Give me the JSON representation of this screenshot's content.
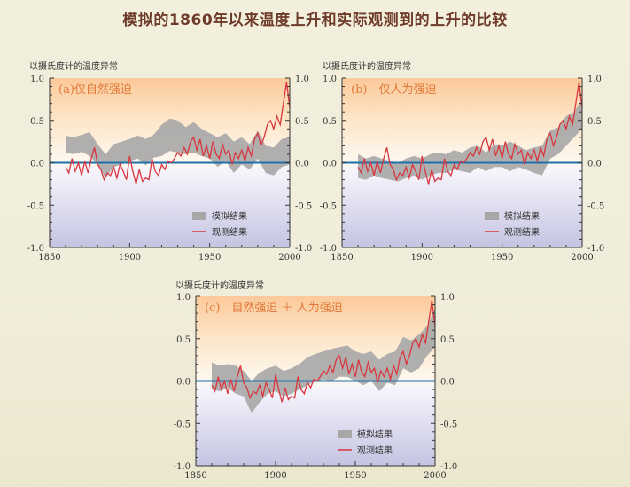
{
  "title": "模拟的1860年以来温度上升和实际观测到的上升的比较",
  "colors": {
    "observed": "#d9363e",
    "model": "#a7a7a7",
    "zero_line": "#1f6fa8",
    "title": "#6e3b2a",
    "label": "#e07a3a"
  },
  "chart_data": [
    {
      "type": "area",
      "panel_label": "(a)仅自然强迫",
      "ylabel": "以摄氏度计的温度异常",
      "xlim": [
        1850,
        2000
      ],
      "ylim": [
        -1.0,
        1.0
      ],
      "x_ticks": [
        "1850",
        "1900",
        "1950",
        "2000"
      ],
      "y_ticks": [
        "1.0",
        "0.5",
        "0.0",
        "-0.5",
        "-1.0"
      ],
      "legend": [
        {
          "name": "模拟结果",
          "kind": "band"
        },
        {
          "name": "观测结果",
          "kind": "line"
        }
      ],
      "legend_position": "bottom-right",
      "series": [
        {
          "name": "模拟结果",
          "kind": "band",
          "x": [
            1860,
            1865,
            1870,
            1875,
            1880,
            1885,
            1890,
            1895,
            1900,
            1905,
            1910,
            1915,
            1920,
            1925,
            1930,
            1935,
            1940,
            1945,
            1950,
            1955,
            1960,
            1965,
            1970,
            1975,
            1980,
            1985,
            1990,
            1995,
            2000
          ],
          "low": [
            0.12,
            0.1,
            0.13,
            0.08,
            -0.02,
            -0.18,
            -0.05,
            -0.02,
            0.02,
            0.05,
            -0.03,
            0.06,
            0.08,
            0.14,
            0.12,
            0.1,
            0.12,
            0.08,
            0.05,
            -0.05,
            0.02,
            -0.12,
            -0.02,
            -0.08,
            0.05,
            -0.12,
            -0.15,
            -0.05,
            -0.02
          ],
          "high": [
            0.32,
            0.3,
            0.33,
            0.36,
            0.22,
            0.1,
            0.22,
            0.25,
            0.28,
            0.32,
            0.28,
            0.33,
            0.45,
            0.52,
            0.5,
            0.42,
            0.48,
            0.4,
            0.35,
            0.3,
            0.35,
            0.25,
            0.3,
            0.22,
            0.38,
            0.2,
            0.18,
            0.28,
            0.3
          ]
        },
        {
          "name": "观测结果",
          "kind": "line",
          "x": [
            1860,
            1862,
            1864,
            1866,
            1868,
            1870,
            1872,
            1874,
            1876,
            1878,
            1880,
            1882,
            1884,
            1886,
            1888,
            1890,
            1892,
            1894,
            1896,
            1898,
            1900,
            1902,
            1904,
            1906,
            1908,
            1910,
            1912,
            1914,
            1916,
            1918,
            1920,
            1922,
            1924,
            1926,
            1928,
            1930,
            1932,
            1934,
            1936,
            1938,
            1940,
            1942,
            1944,
            1946,
            1948,
            1950,
            1952,
            1954,
            1956,
            1958,
            1960,
            1962,
            1964,
            1966,
            1968,
            1970,
            1972,
            1974,
            1976,
            1978,
            1980,
            1982,
            1984,
            1986,
            1988,
            1990,
            1992,
            1994,
            1996,
            1998,
            2000
          ],
          "y": [
            -0.05,
            -0.12,
            0.05,
            -0.1,
            0.0,
            -0.15,
            0.02,
            -0.12,
            0.05,
            0.18,
            -0.02,
            -0.08,
            -0.2,
            -0.12,
            -0.15,
            -0.05,
            -0.18,
            -0.02,
            -0.1,
            -0.2,
            0.08,
            -0.1,
            -0.25,
            -0.08,
            -0.22,
            -0.18,
            -0.2,
            0.05,
            -0.1,
            -0.15,
            -0.02,
            -0.08,
            0.02,
            0.0,
            0.05,
            0.12,
            0.08,
            0.18,
            0.1,
            0.25,
            0.3,
            0.15,
            0.28,
            0.08,
            0.2,
            0.05,
            0.25,
            0.1,
            0.05,
            0.22,
            0.1,
            0.15,
            -0.02,
            0.12,
            0.05,
            0.15,
            0.02,
            0.18,
            0.08,
            0.28,
            0.35,
            0.2,
            0.3,
            0.45,
            0.5,
            0.4,
            0.55,
            0.45,
            0.7,
            0.95,
            0.65
          ]
        }
      ]
    },
    {
      "type": "area",
      "panel_label": "(b)　仅人为强迫",
      "ylabel": "以摄氏度计的温度异常",
      "xlim": [
        1850,
        2000
      ],
      "ylim": [
        -1.0,
        1.0
      ],
      "x_ticks": [
        "1850",
        "1900",
        "1950",
        "2000"
      ],
      "y_ticks": [
        "1.0",
        "0.5",
        "0.0",
        "-0.5",
        "-1.0"
      ],
      "legend": [
        {
          "name": "模拟结果",
          "kind": "band"
        },
        {
          "name": "观测结果",
          "kind": "line"
        }
      ],
      "legend_position": "bottom-right",
      "series": [
        {
          "name": "模拟结果",
          "kind": "band",
          "x": [
            1860,
            1865,
            1870,
            1875,
            1880,
            1885,
            1890,
            1895,
            1900,
            1905,
            1910,
            1915,
            1920,
            1925,
            1930,
            1935,
            1940,
            1945,
            1950,
            1955,
            1960,
            1965,
            1970,
            1975,
            1980,
            1985,
            1990,
            1995,
            2000
          ],
          "low": [
            -0.18,
            -0.2,
            -0.15,
            -0.18,
            -0.2,
            -0.22,
            -0.18,
            -0.15,
            -0.2,
            -0.15,
            -0.12,
            -0.12,
            -0.08,
            -0.1,
            -0.12,
            -0.05,
            -0.1,
            -0.05,
            -0.05,
            -0.1,
            -0.05,
            -0.08,
            -0.12,
            -0.15,
            0.05,
            0.1,
            0.2,
            0.3,
            0.4
          ],
          "high": [
            0.1,
            0.05,
            0.08,
            0.05,
            0.02,
            0.0,
            0.05,
            0.08,
            0.05,
            0.1,
            0.12,
            0.1,
            0.15,
            0.12,
            0.18,
            0.2,
            0.12,
            0.22,
            0.2,
            0.25,
            0.2,
            0.15,
            0.18,
            0.2,
            0.38,
            0.42,
            0.55,
            0.6,
            0.75
          ]
        },
        {
          "name": "观测结果",
          "kind": "line",
          "x": [
            1860,
            1862,
            1864,
            1866,
            1868,
            1870,
            1872,
            1874,
            1876,
            1878,
            1880,
            1882,
            1884,
            1886,
            1888,
            1890,
            1892,
            1894,
            1896,
            1898,
            1900,
            1902,
            1904,
            1906,
            1908,
            1910,
            1912,
            1914,
            1916,
            1918,
            1920,
            1922,
            1924,
            1926,
            1928,
            1930,
            1932,
            1934,
            1936,
            1938,
            1940,
            1942,
            1944,
            1946,
            1948,
            1950,
            1952,
            1954,
            1956,
            1958,
            1960,
            1962,
            1964,
            1966,
            1968,
            1970,
            1972,
            1974,
            1976,
            1978,
            1980,
            1982,
            1984,
            1986,
            1988,
            1990,
            1992,
            1994,
            1996,
            1998,
            2000
          ],
          "y": [
            -0.05,
            -0.12,
            0.05,
            -0.1,
            0.0,
            -0.15,
            0.02,
            -0.12,
            0.05,
            0.18,
            -0.02,
            -0.08,
            -0.2,
            -0.12,
            -0.15,
            -0.05,
            -0.18,
            -0.02,
            -0.1,
            -0.2,
            0.08,
            -0.1,
            -0.25,
            -0.08,
            -0.22,
            -0.18,
            -0.2,
            0.05,
            -0.1,
            -0.15,
            -0.02,
            -0.08,
            0.02,
            0.0,
            0.05,
            0.12,
            0.08,
            0.18,
            0.1,
            0.25,
            0.3,
            0.15,
            0.28,
            0.08,
            0.2,
            0.05,
            0.25,
            0.1,
            0.05,
            0.22,
            0.1,
            0.15,
            -0.02,
            0.12,
            0.05,
            0.15,
            0.02,
            0.18,
            0.08,
            0.28,
            0.35,
            0.2,
            0.3,
            0.45,
            0.5,
            0.4,
            0.55,
            0.45,
            0.7,
            0.95,
            0.65
          ]
        }
      ]
    },
    {
      "type": "area",
      "panel_label": "(c)　自然强迫 ＋ 人为强迫",
      "ylabel": "以摄氏度计的温度异常",
      "xlim": [
        1850,
        2000
      ],
      "ylim": [
        -1.0,
        1.0
      ],
      "x_ticks": [
        "1850",
        "1900",
        "1950",
        "2000"
      ],
      "y_ticks": [
        "1.0",
        "0.5",
        "0.0",
        "-0.5",
        "-1.0"
      ],
      "legend": [
        {
          "name": "模拟结果",
          "kind": "band"
        },
        {
          "name": "观测结果",
          "kind": "line"
        }
      ],
      "legend_position": "bottom-right",
      "series": [
        {
          "name": "模拟结果",
          "kind": "band",
          "x": [
            1860,
            1865,
            1870,
            1875,
            1880,
            1885,
            1890,
            1895,
            1900,
            1905,
            1910,
            1915,
            1920,
            1925,
            1930,
            1935,
            1940,
            1945,
            1950,
            1955,
            1960,
            1965,
            1970,
            1975,
            1980,
            1985,
            1990,
            1995,
            2000
          ],
          "low": [
            -0.1,
            -0.12,
            -0.08,
            -0.15,
            -0.18,
            -0.38,
            -0.25,
            -0.15,
            -0.12,
            -0.18,
            -0.15,
            -0.1,
            -0.05,
            0.0,
            0.02,
            0.0,
            0.05,
            0.05,
            0.0,
            -0.05,
            0.0,
            -0.12,
            -0.02,
            -0.05,
            0.15,
            0.1,
            0.15,
            0.3,
            0.4
          ],
          "high": [
            0.22,
            0.18,
            0.2,
            0.18,
            0.12,
            0.0,
            0.1,
            0.15,
            0.18,
            0.12,
            0.15,
            0.2,
            0.28,
            0.32,
            0.35,
            0.38,
            0.4,
            0.42,
            0.35,
            0.32,
            0.35,
            0.25,
            0.32,
            0.35,
            0.52,
            0.48,
            0.55,
            0.65,
            0.85
          ]
        },
        {
          "name": "观测结果",
          "kind": "line",
          "x": [
            1860,
            1862,
            1864,
            1866,
            1868,
            1870,
            1872,
            1874,
            1876,
            1878,
            1880,
            1882,
            1884,
            1886,
            1888,
            1890,
            1892,
            1894,
            1896,
            1898,
            1900,
            1902,
            1904,
            1906,
            1908,
            1910,
            1912,
            1914,
            1916,
            1918,
            1920,
            1922,
            1924,
            1926,
            1928,
            1930,
            1932,
            1934,
            1936,
            1938,
            1940,
            1942,
            1944,
            1946,
            1948,
            1950,
            1952,
            1954,
            1956,
            1958,
            1960,
            1962,
            1964,
            1966,
            1968,
            1970,
            1972,
            1974,
            1976,
            1978,
            1980,
            1982,
            1984,
            1986,
            1988,
            1990,
            1992,
            1994,
            1996,
            1998,
            2000
          ],
          "y": [
            -0.05,
            -0.12,
            0.05,
            -0.1,
            0.0,
            -0.15,
            0.02,
            -0.12,
            0.05,
            0.18,
            -0.02,
            -0.08,
            -0.2,
            -0.12,
            -0.15,
            -0.05,
            -0.18,
            -0.02,
            -0.1,
            -0.2,
            0.08,
            -0.1,
            -0.25,
            -0.08,
            -0.22,
            -0.18,
            -0.2,
            0.05,
            -0.1,
            -0.15,
            -0.02,
            -0.08,
            0.02,
            0.0,
            0.05,
            0.12,
            0.08,
            0.18,
            0.1,
            0.25,
            0.3,
            0.15,
            0.28,
            0.08,
            0.2,
            0.05,
            0.25,
            0.1,
            0.05,
            0.22,
            0.1,
            0.15,
            -0.02,
            0.12,
            0.05,
            0.15,
            0.02,
            0.18,
            0.08,
            0.28,
            0.35,
            0.2,
            0.3,
            0.45,
            0.5,
            0.4,
            0.55,
            0.45,
            0.7,
            0.95,
            0.65
          ]
        }
      ]
    }
  ]
}
